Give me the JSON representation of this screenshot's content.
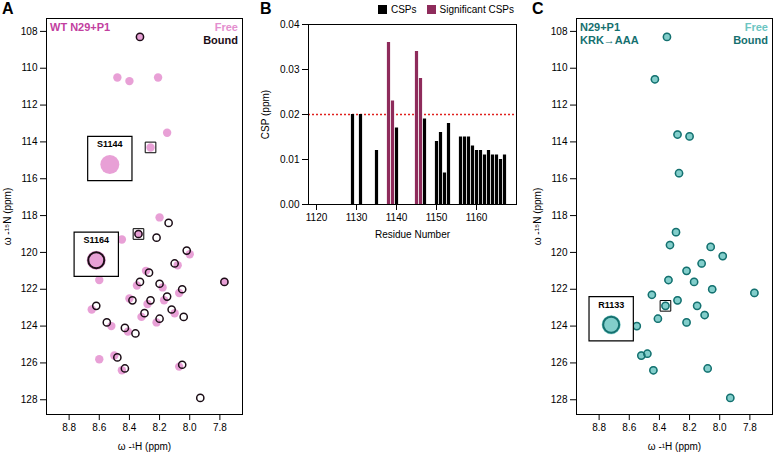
{
  "chart_data": [
    {
      "panel_label": "A",
      "type": "scatter",
      "title": "WT N29+P1",
      "x_label": "ω -¹H (ppm)",
      "y_label": "ω -¹⁵N (ppm)",
      "xlim": [
        8.95,
        7.65
      ],
      "xticks": [
        8.8,
        8.6,
        8.4,
        8.2,
        {
          "value": 8,
          "label": "8.0"
        },
        7.8
      ],
      "ylim": [
        128.8,
        107.3
      ],
      "yticks": [
        108,
        110,
        112,
        114,
        116,
        118,
        120,
        122,
        124,
        126,
        128
      ],
      "legend": "top-right",
      "series": [
        {
          "name": "Free",
          "color": "#e48fcf",
          "marker": "circle",
          "x": [
            8.33,
            8.48,
            8.4,
            8.21,
            8.15,
            8.26,
            8.2,
            8.45,
            8.34,
            8.0,
            8.08,
            8.29,
            8.35,
            8.18,
            7.77,
            8.07,
            8.17,
            8.28,
            8.4,
            8.1,
            8.32,
            8.22,
            8.6,
            8.65,
            8.52,
            8.41,
            8.5,
            8.45,
            8.07,
            8.6
          ],
          "y": [
            108.3,
            110.5,
            110.7,
            110.5,
            113.5,
            114.3,
            118.1,
            119.3,
            119.0,
            120.1,
            120.7,
            121.0,
            121.8,
            121.9,
            121.6,
            122.2,
            122.6,
            122.8,
            122.5,
            123.3,
            123.5,
            123.8,
            121.5,
            123.1,
            124.0,
            124.3,
            125.6,
            126.4,
            126.2,
            125.8
          ]
        },
        {
          "name": "Bound",
          "color": "#1b0d16",
          "marker": "circle-open",
          "x": [
            8.33,
            8.14,
            8.34,
            8.02,
            8.1,
            8.27,
            8.33,
            8.2,
            7.77,
            8.05,
            8.15,
            8.26,
            8.38,
            8.12,
            8.3,
            8.2,
            8.04,
            8.62,
            8.43,
            8.55,
            8.36,
            8.48,
            8.43,
            8.05,
            7.93,
            8.22
          ],
          "y": [
            108.3,
            118.4,
            119.0,
            119.9,
            120.6,
            121.1,
            121.6,
            121.7,
            121.6,
            122.0,
            122.4,
            122.6,
            122.6,
            123.1,
            123.3,
            123.6,
            123.5,
            122.9,
            124.1,
            123.8,
            124.4,
            125.7,
            126.3,
            126.1,
            127.9,
            119.2
          ]
        }
      ],
      "annotations": [
        {
          "text": "S1144",
          "x": 8.26,
          "y": 114.3,
          "inset_x": 8.53,
          "inset_y": 114.9,
          "series": [
            "Free"
          ]
        },
        {
          "text": "S1164",
          "x": 8.34,
          "y": 119.0,
          "inset_x": 8.62,
          "inset_y": 120.1,
          "series": [
            "Free",
            "Bound"
          ]
        }
      ]
    },
    {
      "panel_label": "B",
      "type": "bar",
      "x_label": "Residue Number",
      "y_label": "CSP (ppm)",
      "x": [
        1129,
        1131,
        1135,
        1138,
        1139,
        1140,
        1145,
        1146,
        1147,
        1150,
        1151,
        1152,
        1153,
        1156,
        1157,
        1158,
        1159,
        1160,
        1161,
        1162,
        1163,
        1164,
        1165,
        1166,
        1167
      ],
      "series": [
        {
          "name": "CSPs",
          "color": "#000000",
          "values": [
            0.02,
            0.02,
            0.012,
            null,
            null,
            0.017,
            null,
            null,
            0.019,
            0.014,
            0.016,
            0.007,
            0.018,
            0.015,
            0.015,
            0.015,
            0.013,
            0.012,
            0.012,
            0.011,
            0.012,
            0.011,
            0.011,
            0.01,
            0.011
          ]
        },
        {
          "name": "Significant CSPs",
          "color": "#8e2b5b",
          "values": [
            null,
            null,
            null,
            0.036,
            0.023,
            null,
            0.034,
            0.028,
            null,
            null,
            null,
            null,
            null,
            null,
            null,
            null,
            null,
            null,
            null,
            null,
            null,
            null,
            null,
            null,
            null
          ]
        }
      ],
      "threshold": 0.02,
      "xlim": [
        1118,
        1170
      ],
      "xticks": [
        1120,
        1130,
        1140,
        1150,
        1160
      ],
      "ylim": [
        0,
        0.04
      ],
      "yticks": [
        {
          "value": 0,
          "label": "0.00"
        },
        0.01,
        0.02,
        0.03,
        0.04
      ],
      "legend": "top"
    },
    {
      "panel_label": "C",
      "type": "scatter",
      "title": "N29+P1\nKRK→AAA",
      "x_label": "ω -¹H (ppm)",
      "y_label": "ω -¹⁵N (ppm)",
      "xlim": [
        8.95,
        7.65
      ],
      "xticks": [
        8.8,
        8.6,
        8.4,
        8.2,
        {
          "value": 8,
          "label": "8.0"
        },
        7.8
      ],
      "ylim": [
        128.8,
        107.3
      ],
      "yticks": [
        108,
        110,
        112,
        114,
        116,
        118,
        120,
        122,
        124,
        126,
        128
      ],
      "legend": "top-right",
      "series": [
        {
          "name": "Free",
          "color": "#6cc5c2",
          "marker": "circle",
          "x": [
            8.35,
            8.43,
            8.28,
            8.2,
            8.27,
            8.29,
            8.33,
            8.06,
            7.98,
            8.12,
            8.22,
            8.34,
            8.17,
            8.05,
            8.45,
            8.28,
            8.15,
            8.36,
            8.1,
            8.22,
            8.41,
            7.77,
            8.55,
            8.48,
            8.52,
            8.44,
            8.08,
            7.93
          ],
          "y": [
            108.3,
            110.6,
            113.6,
            113.7,
            115.7,
            118.9,
            119.6,
            119.7,
            120.2,
            120.6,
            121.0,
            121.5,
            121.6,
            122.0,
            122.3,
            122.6,
            122.9,
            122.9,
            123.4,
            123.8,
            123.6,
            122.2,
            124.0,
            125.5,
            125.6,
            126.4,
            126.3,
            127.9
          ]
        },
        {
          "name": "Bound",
          "color": "#15706f",
          "marker": "circle-open",
          "x": [
            8.35,
            8.43,
            8.28,
            8.2,
            8.27,
            8.29,
            8.33,
            8.06,
            7.98,
            8.12,
            8.22,
            8.34,
            8.17,
            8.05,
            8.45,
            8.28,
            8.15,
            8.36,
            8.1,
            8.22,
            8.41,
            7.77,
            8.55,
            8.48,
            8.52,
            8.44,
            8.08,
            7.93
          ],
          "y": [
            108.3,
            110.6,
            113.6,
            113.7,
            115.7,
            118.9,
            119.6,
            119.7,
            120.2,
            120.6,
            121.0,
            121.5,
            121.6,
            122.0,
            122.3,
            122.6,
            122.9,
            122.9,
            123.4,
            123.8,
            123.6,
            122.2,
            124.0,
            125.5,
            125.6,
            126.4,
            126.3,
            127.9
          ]
        }
      ],
      "annotations": [
        {
          "text": "R1133",
          "x": 8.36,
          "y": 122.9,
          "inset_x": 8.72,
          "inset_y": 123.6,
          "series": [
            "Free",
            "Bound"
          ]
        }
      ]
    }
  ]
}
